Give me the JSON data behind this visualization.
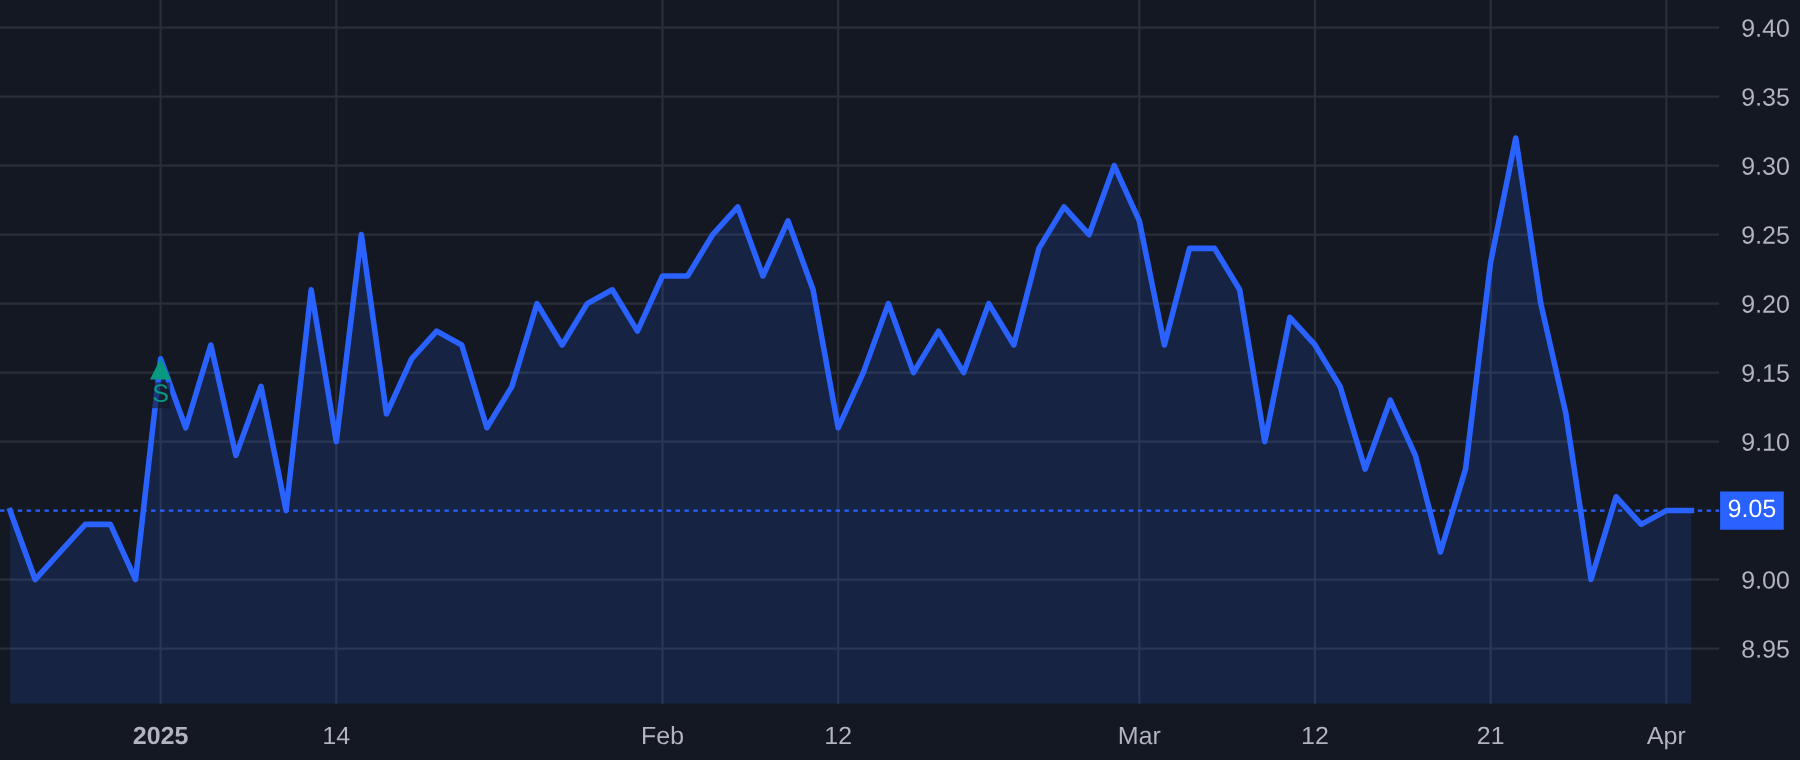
{
  "chart_data": {
    "type": "area",
    "categories": [
      null,
      null,
      null,
      null,
      null,
      null,
      "2025",
      null,
      null,
      null,
      null,
      null,
      null,
      "14",
      null,
      null,
      null,
      null,
      null,
      null,
      null,
      null,
      null,
      null,
      null,
      null,
      "Feb",
      null,
      null,
      null,
      null,
      null,
      null,
      "12",
      null,
      null,
      null,
      null,
      null,
      null,
      null,
      null,
      null,
      null,
      null,
      "Mar",
      null,
      null,
      null,
      null,
      null,
      null,
      "12",
      null,
      null,
      null,
      null,
      null,
      null,
      "21",
      null,
      null,
      null,
      null,
      null,
      null,
      "Apr",
      null
    ],
    "series": [
      {
        "color": "#2962ff",
        "values": [
          9.05,
          9.0,
          9.02,
          9.04,
          9.04,
          9.0,
          9.16,
          9.11,
          9.17,
          9.09,
          9.14,
          9.05,
          9.21,
          9.1,
          9.25,
          9.12,
          9.16,
          9.18,
          9.17,
          9.11,
          9.14,
          9.2,
          9.17,
          9.2,
          9.21,
          9.18,
          9.22,
          9.22,
          9.25,
          9.27,
          9.22,
          9.26,
          9.21,
          9.11,
          9.15,
          9.2,
          9.15,
          9.18,
          9.15,
          9.2,
          9.17,
          9.24,
          9.27,
          9.25,
          9.3,
          9.26,
          9.17,
          9.24,
          9.24,
          9.21,
          9.1,
          9.19,
          9.17,
          9.14,
          9.08,
          9.13,
          9.09,
          9.02,
          9.08,
          9.23,
          9.32,
          9.2,
          9.12,
          9.0,
          9.06,
          9.04,
          9.05,
          9.05
        ]
      }
    ],
    "ylim": [
      8.91,
      9.42
    ],
    "yticks": [
      8.95,
      {
        "value": 9.0,
        "label": "9.00"
      },
      {
        "value": 9.1,
        "label": "9.10"
      },
      9.15,
      {
        "value": 9.2,
        "label": "9.20"
      },
      9.25,
      {
        "value": 9.3,
        "label": "9.30"
      },
      9.35,
      {
        "value": 9.4,
        "label": "9.40"
      }
    ],
    "grid": true,
    "ref_lines": [
      {
        "axis": "y",
        "value": 9.05,
        "label": "9.05",
        "color": "#2962ff",
        "line_style": "dotted"
      }
    ],
    "annotations": [
      {
        "text": "S",
        "x": "2025",
        "y": 9.16
      }
    ]
  }
}
